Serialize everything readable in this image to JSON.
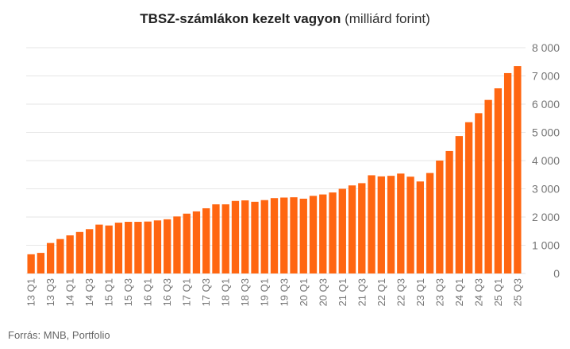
{
  "chart_data": {
    "type": "bar",
    "title": "TBSZ-számlákon kezelt vagyon",
    "subtitle": "(milliárd forint)",
    "categories": [
      "13 Q1",
      "13 Q2",
      "13 Q3",
      "13 Q4",
      "14 Q1",
      "14 Q2",
      "14 Q3",
      "14 Q4",
      "15 Q1",
      "15 Q2",
      "15 Q3",
      "15 Q4",
      "16 Q1",
      "16 Q2",
      "16 Q3",
      "16 Q4",
      "17 Q1",
      "17 Q2",
      "17 Q3",
      "17 Q4",
      "18 Q1",
      "18 Q2",
      "18 Q3",
      "18 Q4",
      "19 Q1",
      "19 Q2",
      "19 Q3",
      "19 Q4",
      "20 Q1",
      "20 Q2",
      "20 Q3",
      "20 Q4",
      "21 Q1",
      "21 Q2",
      "21 Q3",
      "21 Q4",
      "22 Q1",
      "22 Q2",
      "22 Q3",
      "22 Q4",
      "23 Q1",
      "23 Q2",
      "23 Q3",
      "23 Q4",
      "24 Q1",
      "24 Q2",
      "24 Q3",
      "24 Q4",
      "25 Q1",
      "25 Q2",
      "25 Q3"
    ],
    "tick_labels": [
      "13 Q1",
      "13 Q3",
      "14 Q1",
      "14 Q3",
      "15 Q1",
      "15 Q3",
      "16 Q1",
      "16 Q3",
      "17 Q1",
      "17 Q3",
      "18 Q1",
      "18 Q3",
      "19 Q1",
      "19 Q3",
      "20 Q1",
      "20 Q3",
      "21 Q1",
      "21 Q3",
      "22 Q1",
      "22 Q3",
      "23 Q1",
      "23 Q3",
      "24 Q1",
      "24 Q3",
      "25 Q1",
      "25 Q3"
    ],
    "values": [
      680,
      730,
      1080,
      1220,
      1350,
      1470,
      1570,
      1730,
      1700,
      1800,
      1830,
      1830,
      1840,
      1880,
      1920,
      2020,
      2120,
      2200,
      2310,
      2450,
      2450,
      2570,
      2590,
      2540,
      2600,
      2670,
      2690,
      2700,
      2650,
      2750,
      2800,
      2870,
      3000,
      3120,
      3200,
      3480,
      3440,
      3460,
      3540,
      3430,
      3260,
      3560,
      4000,
      4340,
      4870,
      5360,
      5680,
      6150,
      6560,
      7100,
      7350
    ],
    "ylim": [
      0,
      8000
    ],
    "yticks": [
      0,
      1000,
      2000,
      3000,
      4000,
      5000,
      6000,
      7000,
      8000
    ],
    "ytick_labels": [
      "0",
      "1 000",
      "2 000",
      "3 000",
      "4 000",
      "5 000",
      "6 000",
      "7 000",
      "8 000"
    ],
    "y_axis_side": "right",
    "grid": true,
    "bar_color": "#ff6611",
    "grid_color": "#e6e6e6",
    "label_color": "#757575"
  },
  "source": "Forrás: MNB, Portfolio"
}
